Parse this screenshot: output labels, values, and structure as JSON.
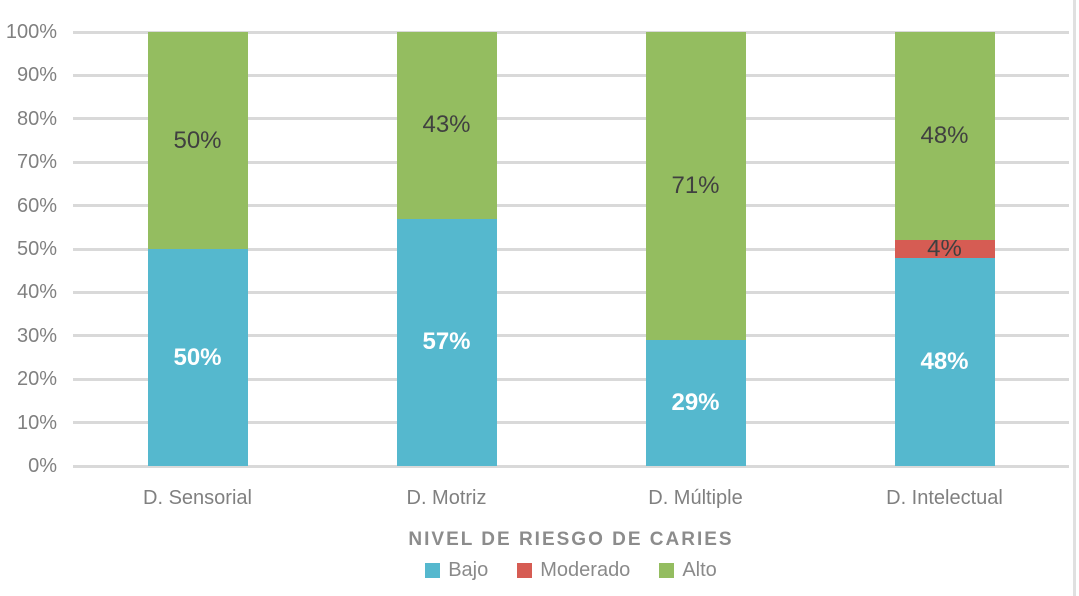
{
  "chart_data": {
    "type": "bar",
    "stacked": true,
    "percent_stacked": true,
    "title": "",
    "xlabel": "NIVEL DE RIESGO DE CARIES",
    "ylabel": "",
    "categories": [
      "D. Sensorial",
      "D. Motriz",
      "D. Múltiple",
      "D. Intelectual"
    ],
    "series": [
      {
        "name": "Bajo",
        "color": "#55b8ce",
        "label_color": "#ffffff",
        "label_bold": true,
        "values": [
          50,
          57,
          29,
          48
        ]
      },
      {
        "name": "Moderado",
        "color": "#d65c53",
        "label_color": "#404040",
        "label_bold": false,
        "values": [
          0,
          0,
          0,
          4
        ]
      },
      {
        "name": "Alto",
        "color": "#94bd60",
        "label_color": "#404040",
        "label_bold": false,
        "values": [
          50,
          43,
          71,
          48
        ]
      }
    ],
    "data_label_suffix": "%",
    "yticks": [
      "0%",
      "10%",
      "20%",
      "30%",
      "40%",
      "50%",
      "60%",
      "70%",
      "80%",
      "90%",
      "100%"
    ],
    "ylim": [
      0,
      100
    ],
    "grid": true,
    "legend_position": "bottom"
  },
  "colors": {
    "background": "#ffffff",
    "gridline": "#d9d9d9",
    "axis_text": "#808080",
    "axis_title_text": "#8c8c8c",
    "legend_text": "#8a8a8a",
    "chart_border": "#e0e0e0"
  }
}
